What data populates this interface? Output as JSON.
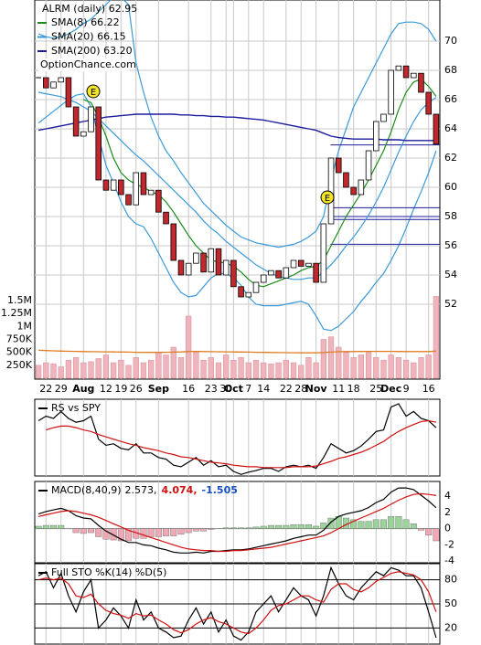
{
  "chart_data": [
    {
      "type": "candlestick",
      "title": "ALRM (daily) 62.95",
      "annotation": "OptionChance.com",
      "categories": [
        null,
        "22",
        null,
        "29",
        null,
        null,
        "Aug",
        null,
        null,
        "12",
        null,
        "19",
        null,
        "26",
        null,
        null,
        "Sep",
        null,
        null,
        null,
        "16",
        null,
        null,
        "23",
        null,
        "30",
        "Oct",
        null,
        "7",
        null,
        "14",
        null,
        null,
        "22",
        null,
        "28",
        null,
        "Nov",
        null,
        null,
        "11",
        null,
        "18",
        null,
        null,
        "25",
        null,
        "Dec",
        null,
        "9",
        null,
        null,
        "16",
        null
      ],
      "close": [
        67.5,
        66.8,
        67.2,
        67.5,
        65.5,
        63.5,
        63.8,
        65.5,
        60.5,
        59.8,
        60.5,
        59.5,
        58.8,
        61.0,
        59.5,
        59.8,
        58.3,
        57.5,
        55.0,
        54.0,
        54.8,
        55.5,
        54.2,
        55.8,
        54.0,
        55.0,
        53.2,
        52.5,
        52.8,
        53.5,
        54.0,
        54.3,
        53.8,
        54.5,
        55.0,
        54.6,
        54.8,
        53.5,
        57.5,
        62.0,
        61.0,
        60.0,
        59.5,
        60.5,
        62.5,
        64.5,
        65.0,
        68.0,
        68.3,
        67.5,
        67.8,
        66.5,
        65.0,
        62.95
      ],
      "up_color": "#ffffff",
      "down_color": "#c0282d",
      "series": [
        {
          "name": "SMA(8) 66.22",
          "color": "#1a8c1a",
          "values": [
            null,
            null,
            null,
            null,
            null,
            null,
            66.0,
            65.8,
            64.8,
            63.5,
            62.0,
            61.0,
            60.5,
            60.2,
            60.0,
            59.7,
            59.5,
            59.0,
            58.3,
            57.5,
            56.7,
            56.0,
            55.5,
            55.0,
            54.9,
            54.8,
            54.6,
            54.2,
            53.7,
            53.3,
            53.2,
            53.4,
            53.6,
            53.8,
            54.0,
            54.3,
            54.5,
            54.6,
            55.0,
            56.0,
            57.0,
            58.0,
            58.8,
            59.6,
            60.5,
            61.5,
            62.5,
            63.8,
            65.3,
            66.5,
            67.2,
            67.4,
            66.9,
            66.22
          ]
        },
        {
          "name": "SMA(20) 66.15",
          "color": "#3a9ad9",
          "values": [
            66.5,
            66.4,
            66.3,
            66.2,
            66.0,
            65.8,
            65.5,
            65.2,
            64.7,
            64.2,
            63.7,
            63.2,
            62.7,
            62.2,
            61.8,
            61.3,
            60.8,
            60.3,
            59.8,
            59.3,
            58.8,
            58.3,
            57.7,
            57.2,
            56.8,
            56.3,
            55.9,
            55.5,
            55.1,
            54.7,
            54.4,
            54.1,
            53.9,
            53.8,
            53.7,
            53.7,
            53.8,
            53.8,
            54.2,
            54.7,
            55.3,
            56.0,
            56.6,
            57.3,
            58.1,
            59.0,
            60.0,
            61.2,
            62.4,
            63.5,
            64.5,
            65.3,
            65.8,
            66.15
          ]
        },
        {
          "name": "SMA(200) 63.20",
          "color": "#1c1c9e",
          "values": [
            63.9,
            64.0,
            64.1,
            64.2,
            64.3,
            64.4,
            64.5,
            64.6,
            64.7,
            64.8,
            64.85,
            64.9,
            64.95,
            65.0,
            65.0,
            65.0,
            65.0,
            65.0,
            65.0,
            64.95,
            64.95,
            64.9,
            64.9,
            64.85,
            64.85,
            64.8,
            64.8,
            64.75,
            64.7,
            64.65,
            64.6,
            64.5,
            64.4,
            64.3,
            64.2,
            64.1,
            64.0,
            63.9,
            63.7,
            63.5,
            63.4,
            63.35,
            63.3,
            63.3,
            63.3,
            63.3,
            63.25,
            63.25,
            63.25,
            63.2,
            63.2,
            63.2,
            63.2,
            63.2
          ]
        }
      ],
      "bands": {
        "color": "#3a9ad9",
        "upper": [
          70.5,
          70.3,
          70.2,
          70.3,
          70.5,
          70.8,
          71.2,
          71.5,
          72.0,
          72.5,
          73,
          73,
          72.5,
          68.5,
          66.5,
          64.8,
          63.5,
          62.5,
          61.8,
          61.0,
          60.3,
          59.6,
          58.9,
          58.4,
          57.9,
          57.4,
          57.0,
          56.6,
          56.4,
          56.2,
          56.1,
          56.0,
          55.9,
          56.0,
          56.1,
          56.3,
          56.6,
          57.0,
          58.0,
          60.5,
          62.5,
          64.0,
          65.5,
          66.5,
          67.5,
          68.5,
          69.5,
          70.5,
          71.2,
          71.3,
          71.3,
          71.2,
          70.8,
          70.0
        ],
        "lower": [
          64.4,
          64.8,
          65.2,
          65.6,
          66.0,
          66.3,
          66.4,
          65.5,
          63.5,
          61.5,
          60.3,
          59.0,
          58.0,
          57.5,
          57.3,
          56.5,
          55.5,
          54.5,
          53.5,
          52.8,
          52.5,
          52.6,
          53.2,
          53.8,
          54.1,
          54.1,
          53.8,
          53.3,
          52.5,
          52.0,
          51.9,
          51.9,
          51.9,
          52.0,
          52.1,
          52.2,
          52.0,
          51.2,
          50.3,
          50.2,
          50.5,
          51.0,
          51.5,
          52.2,
          52.8,
          53.5,
          54.1,
          55.0,
          56.0,
          57.2,
          58.5,
          59.7,
          61.0,
          62.5
        ]
      },
      "levels": [
        62.9,
        58.6,
        58.0,
        57.8,
        56.1
      ],
      "level_color": "#1c1c9e",
      "events": [
        "E",
        "E"
      ],
      "ylim": [
        46.875,
        72.8125
      ],
      "yticks": [
        52,
        54,
        56,
        58,
        60,
        62,
        64,
        66,
        68,
        70
      ],
      "grid": true,
      "volume": {
        "color": "#f0b4bc",
        "ylim": [
          0,
          1500000
        ],
        "yticks": [
          {
            "value": 250000,
            "label": "250K"
          },
          {
            "value": 500000,
            "label": "500K"
          },
          {
            "value": 750000,
            "label": "750K"
          },
          {
            "value": 1000000,
            "label": "1M"
          },
          {
            "value": 1250000,
            "label": "1.25M"
          },
          {
            "value": 1500000,
            "label": "1.5M"
          }
        ],
        "values": [
          250000,
          300000,
          280000,
          220000,
          350000,
          400000,
          300000,
          320000,
          380000,
          450000,
          300000,
          350000,
          250000,
          400000,
          300000,
          350000,
          500000,
          450000,
          600000,
          400000,
          1200000,
          500000,
          350000,
          400000,
          300000,
          450000,
          350000,
          400000,
          300000,
          350000,
          300000,
          280000,
          300000,
          350000,
          300000,
          250000,
          400000,
          300000,
          750000,
          800000,
          600000,
          500000,
          400000,
          450000,
          500000,
          400000,
          350000,
          450000,
          400000,
          350000,
          300000,
          400000,
          450000,
          1580000
        ],
        "average": {
          "color": "#e07b20",
          "values": [
            540000,
            535000,
            530000,
            525000,
            520000,
            518000,
            516000,
            514000,
            512000,
            510000,
            508000,
            506000,
            504000,
            502000,
            500000,
            500000,
            500000,
            502000,
            505000,
            508000,
            515000,
            518000,
            516000,
            514000,
            512000,
            510000,
            508000,
            506000,
            504000,
            502000,
            500000,
            498000,
            496000,
            494000,
            492000,
            490000,
            490000,
            490000,
            495000,
            505000,
            512000,
            515000,
            516000,
            517000,
            518000,
            518000,
            518000,
            518000,
            517000,
            516000,
            515000,
            515000,
            516000,
            525000
          ]
        }
      }
    },
    {
      "type": "line",
      "title": "RS vs SPY",
      "ylim": [
        0,
        100
      ],
      "series": [
        {
          "color": "#000000",
          "values": [
            72,
            78,
            75,
            84,
            75,
            70,
            72,
            78,
            48,
            40,
            42,
            36,
            34,
            42,
            30,
            30,
            24,
            22,
            14,
            12,
            18,
            24,
            14,
            20,
            12,
            14,
            6,
            2,
            5,
            7,
            10,
            10,
            6,
            12,
            14,
            12,
            14,
            10,
            24,
            42,
            36,
            30,
            33,
            39,
            48,
            58,
            60,
            90,
            94,
            78,
            84,
            75,
            72,
            63
          ]
        },
        {
          "color": "#d01010",
          "values": [
            null,
            60,
            63,
            65,
            65,
            63,
            60,
            58,
            54,
            51,
            48,
            45,
            42,
            40,
            37,
            35,
            33,
            30,
            28,
            25,
            24,
            22,
            20,
            18,
            17,
            16,
            14,
            13,
            12,
            12,
            11,
            11,
            11,
            11,
            12,
            12,
            12,
            13,
            16,
            19,
            23,
            25,
            28,
            31,
            35,
            40,
            45,
            52,
            58,
            63,
            67,
            71,
            72,
            70
          ]
        }
      ]
    },
    {
      "type": "macd",
      "title": "MACD(8,40,9)",
      "ylim": [
        -4.2,
        5.8
      ],
      "yticks": [
        -4,
        -2,
        0,
        2,
        4
      ],
      "histogram": {
        "up_color": "#9ad49a",
        "down_color": "#f0a8b4",
        "values": [
          0.3,
          0.4,
          0.4,
          0.4,
          0.0,
          -0.5,
          -0.6,
          -0.5,
          -1.0,
          -1.3,
          -1.4,
          -1.5,
          -1.5,
          -1.2,
          -1.2,
          -1.0,
          -1.0,
          -0.9,
          -0.9,
          -0.7,
          -0.5,
          -0.3,
          -0.3,
          -0.1,
          0.0,
          0.1,
          0.1,
          0.1,
          0.1,
          0.2,
          0.3,
          0.4,
          0.4,
          0.4,
          0.5,
          0.5,
          0.5,
          0.3,
          0.7,
          1.3,
          1.5,
          1.3,
          1.1,
          0.9,
          0.9,
          1.1,
          1.1,
          1.5,
          1.5,
          1.1,
          0.6,
          -0.2,
          -0.8,
          -1.505
        ]
      },
      "series": [
        {
          "name": "2.573,",
          "color": "#000000",
          "values": [
            1.8,
            2.1,
            2.3,
            2.5,
            2.2,
            1.6,
            1.3,
            1.2,
            0.4,
            -0.3,
            -0.8,
            -1.3,
            -1.7,
            -1.7,
            -2.0,
            -2.1,
            -2.4,
            -2.6,
            -2.9,
            -3.0,
            -3.0,
            -2.9,
            -3.0,
            -2.8,
            -2.8,
            -2.7,
            -2.6,
            -2.6,
            -2.5,
            -2.3,
            -2.1,
            -1.9,
            -1.7,
            -1.5,
            -1.2,
            -1.0,
            -0.8,
            -0.8,
            -0.2,
            0.8,
            1.5,
            1.8,
            2.0,
            2.2,
            2.6,
            3.2,
            3.6,
            4.5,
            5.0,
            5.0,
            4.8,
            4.1,
            3.4,
            2.573
          ]
        },
        {
          "name": "4.074,",
          "color": "#d01010",
          "values": [
            1.5,
            1.7,
            1.9,
            2.1,
            2.2,
            2.1,
            1.9,
            1.7,
            1.4,
            1.0,
            0.6,
            0.2,
            -0.2,
            -0.5,
            -0.8,
            -1.1,
            -1.4,
            -1.7,
            -2.0,
            -2.3,
            -2.5,
            -2.6,
            -2.7,
            -2.7,
            -2.8,
            -2.8,
            -2.7,
            -2.7,
            -2.6,
            -2.5,
            -2.4,
            -2.3,
            -2.1,
            -1.9,
            -1.7,
            -1.5,
            -1.3,
            -1.1,
            -0.9,
            -0.5,
            0.0,
            0.5,
            0.9,
            1.3,
            1.7,
            2.1,
            2.5,
            3.0,
            3.5,
            3.9,
            4.2,
            4.3,
            4.2,
            4.074
          ]
        }
      ],
      "histogram_label": "-1.505",
      "histogram_label_color": "#1a4fc0"
    },
    {
      "type": "line",
      "title": "Full STO %K(14) %D(5)",
      "ylim": [
        0,
        100
      ],
      "yticks": [
        20,
        50,
        80
      ],
      "grid": true,
      "series": [
        {
          "color": "#000000",
          "values": [
            85,
            90,
            70,
            88,
            60,
            40,
            65,
            80,
            20,
            30,
            45,
            35,
            20,
            55,
            30,
            40,
            20,
            15,
            8,
            10,
            30,
            45,
            25,
            40,
            15,
            30,
            10,
            5,
            15,
            40,
            50,
            60,
            40,
            55,
            70,
            60,
            55,
            35,
            60,
            95,
            75,
            60,
            55,
            70,
            80,
            90,
            85,
            95,
            92,
            85,
            85,
            70,
            40,
            8
          ]
        },
        {
          "color": "#d01010",
          "values": [
            80,
            82,
            80,
            82,
            75,
            60,
            58,
            62,
            50,
            42,
            38,
            36,
            32,
            38,
            35,
            36,
            30,
            25,
            18,
            14,
            18,
            25,
            30,
            33,
            28,
            25,
            20,
            15,
            13,
            20,
            30,
            42,
            48,
            50,
            55,
            60,
            60,
            55,
            52,
            68,
            75,
            75,
            68,
            65,
            70,
            78,
            83,
            88,
            90,
            88,
            86,
            80,
            65,
            40
          ]
        }
      ]
    }
  ]
}
